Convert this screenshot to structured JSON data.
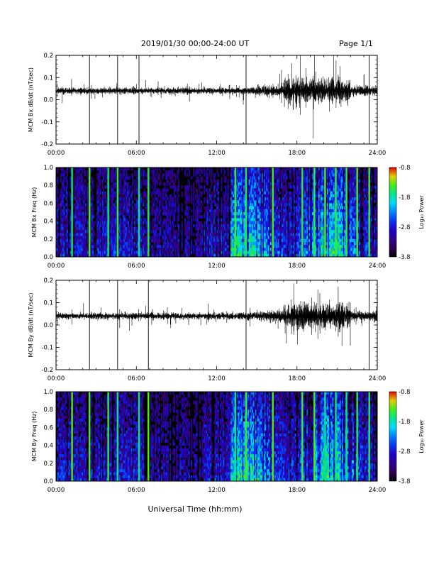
{
  "header": {
    "title": "2019/01/30  00:00-24:00 UT",
    "page": "Page 1/1"
  },
  "xaxis": {
    "label": "Universal Time (hh:mm)",
    "ticks": [
      "00:00",
      "06:00",
      "12:00",
      "18:00",
      "24:00"
    ]
  },
  "colorbar": {
    "label": "Log₁₀ Power",
    "ticks": [
      "-0.8",
      "-1.8",
      "-2.8",
      "-3.8"
    ],
    "range": [
      -3.8,
      -0.8
    ],
    "palette": "rainbow (black-purple-blue-cyan-green-yellow-red)"
  },
  "chart_data": [
    {
      "type": "line",
      "ylabel": "MCM Bx dB/dt (nT/sec)",
      "yticks": [
        "0.2",
        "0.1",
        "0.0",
        "-0.1",
        "-0.2"
      ],
      "ylim": [
        -0.2,
        0.2
      ],
      "xlim_hours": [
        0,
        24
      ],
      "baseline": 0.04,
      "spikes_hours": [
        2.5,
        4.6,
        6.2,
        14.2,
        23.4
      ],
      "color": "#000000"
    },
    {
      "type": "heatmap",
      "ylabel": "MCM Bx Freq (Hz)",
      "yticks": [
        "1.0",
        "0.8",
        "0.6",
        "0.4",
        "0.2",
        "0.0"
      ],
      "ylim": [
        0.0,
        1.0
      ],
      "xlim_hours": [
        0,
        24
      ]
    },
    {
      "type": "line",
      "ylabel": "MCM By dB/dt (nT/sec)",
      "yticks": [
        "0.2",
        "0.1",
        "0.0",
        "-0.1",
        "-0.2"
      ],
      "ylim": [
        -0.2,
        0.2
      ],
      "xlim_hours": [
        0,
        24
      ],
      "baseline": 0.04,
      "spikes_hours": [
        2.5,
        4.6,
        6.9,
        14.2,
        23.4
      ],
      "color": "#000000"
    },
    {
      "type": "heatmap",
      "ylabel": "MCM By Freq (Hz)",
      "yticks": [
        "1.0",
        "0.8",
        "0.6",
        "0.4",
        "0.2",
        "0.0"
      ],
      "ylim": [
        0.0,
        1.0
      ],
      "xlim_hours": [
        0,
        24
      ]
    }
  ]
}
